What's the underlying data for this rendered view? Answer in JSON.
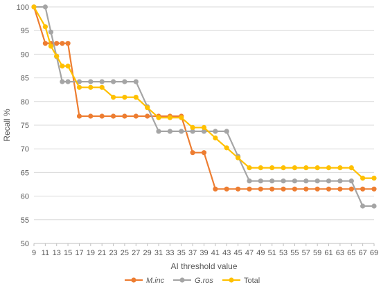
{
  "chart_data": {
    "type": "line",
    "xlabel": "AI threshold value",
    "ylabel": "Recall %",
    "x": [
      9,
      11,
      12,
      13,
      14,
      15,
      17,
      19,
      21,
      23,
      25,
      27,
      29,
      31,
      33,
      35,
      37,
      39,
      41,
      43,
      45,
      47,
      49,
      51,
      53,
      55,
      57,
      59,
      61,
      63,
      65,
      67,
      69
    ],
    "x_tick_labels": [
      9,
      11,
      13,
      15,
      17,
      19,
      21,
      23,
      25,
      27,
      29,
      31,
      33,
      35,
      37,
      39,
      41,
      43,
      45,
      47,
      49,
      51,
      53,
      55,
      57,
      59,
      61,
      63,
      65,
      67,
      69
    ],
    "xlim": [
      9,
      69
    ],
    "ylim": [
      50,
      100
    ],
    "y_ticks": [
      50,
      55,
      60,
      65,
      70,
      75,
      80,
      85,
      90,
      95,
      100
    ],
    "grid": "horizontal",
    "legend": "bottom",
    "series": [
      {
        "name": "M.inc",
        "style": "italic",
        "color": "#ED7D31",
        "values": [
          100,
          92.3,
          92.3,
          92.3,
          92.3,
          92.3,
          76.9,
          76.9,
          76.9,
          76.9,
          76.9,
          76.9,
          76.9,
          76.9,
          76.9,
          76.9,
          69.2,
          69.2,
          61.5,
          61.5,
          61.5,
          61.5,
          61.5,
          61.5,
          61.5,
          61.5,
          61.5,
          61.5,
          61.5,
          61.5,
          61.5,
          61.5,
          61.5
        ]
      },
      {
        "name": "G.ros",
        "style": "italic",
        "color": "#A5A5A5",
        "values": [
          100,
          100,
          94.7,
          89.5,
          84.2,
          84.2,
          84.2,
          84.2,
          84.2,
          84.2,
          84.2,
          84.2,
          78.9,
          73.7,
          73.7,
          73.7,
          73.7,
          73.7,
          73.7,
          73.7,
          68.4,
          63.2,
          63.2,
          63.2,
          63.2,
          63.2,
          63.2,
          63.2,
          63.2,
          63.2,
          63.2,
          57.9,
          57.9
        ]
      },
      {
        "name": "Total",
        "style": "normal",
        "color": "#FFC000",
        "values": [
          100,
          95.8,
          91.7,
          89.6,
          87.5,
          87.5,
          83.0,
          83.0,
          83.0,
          80.9,
          80.9,
          80.9,
          78.7,
          76.6,
          76.6,
          76.6,
          74.5,
          74.5,
          72.3,
          70.2,
          68.1,
          66.0,
          66.0,
          66.0,
          66.0,
          66.0,
          66.0,
          66.0,
          66.0,
          66.0,
          66.0,
          63.8,
          63.8
        ]
      }
    ]
  }
}
